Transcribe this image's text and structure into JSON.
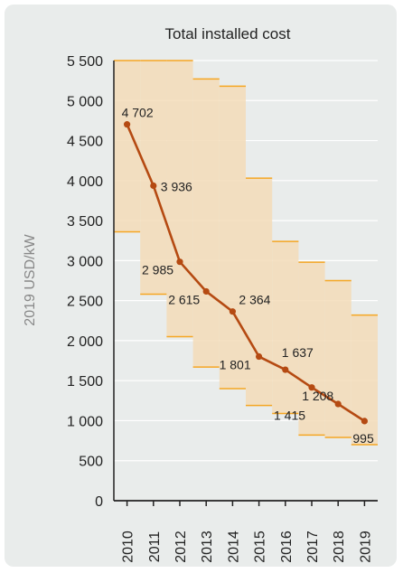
{
  "chart_data": {
    "type": "line",
    "title": "Total installed cost",
    "xlabel": "",
    "ylabel": "2019 USD/kW",
    "ylim": [
      0,
      5500
    ],
    "yticks": [
      0,
      500,
      1000,
      1500,
      2000,
      2500,
      3000,
      3500,
      4000,
      4500,
      5000,
      5500
    ],
    "ytick_labels": [
      "0",
      "500",
      "1 000",
      "1 500",
      "2 000",
      "2 500",
      "3 000",
      "3 500",
      "4 000",
      "4 500",
      "5 000",
      "5 500"
    ],
    "categories": [
      "2010",
      "2011",
      "2012",
      "2013",
      "2014",
      "2015",
      "2016",
      "2017",
      "2018",
      "2019"
    ],
    "series": [
      {
        "values": [
          4702,
          3936,
          2985,
          2615,
          2364,
          1801,
          1637,
          1415,
          1208,
          995
        ],
        "labels": [
          "4 702",
          "3 936",
          "2 985",
          "2 615",
          "2 364",
          "1 801",
          "1 637",
          "1 415",
          "1 208",
          "995"
        ]
      }
    ],
    "range_bands": [
      {
        "low": 3360,
        "high": 5500
      },
      {
        "low": 2580,
        "high": 5500
      },
      {
        "low": 2050,
        "high": 5500
      },
      {
        "low": 1670,
        "high": 5270
      },
      {
        "low": 1400,
        "high": 5180
      },
      {
        "low": 1190,
        "high": 4030
      },
      {
        "low": 1090,
        "high": 3240
      },
      {
        "low": 820,
        "high": 2980
      },
      {
        "low": 790,
        "high": 2750
      },
      {
        "low": 700,
        "high": 2320
      }
    ],
    "grid": true,
    "colors": {
      "line": "#b54a12",
      "band": "#f3dcb9",
      "band_edge": "#f5a623",
      "grid": "#ffffff",
      "axis": "#222222"
    }
  }
}
